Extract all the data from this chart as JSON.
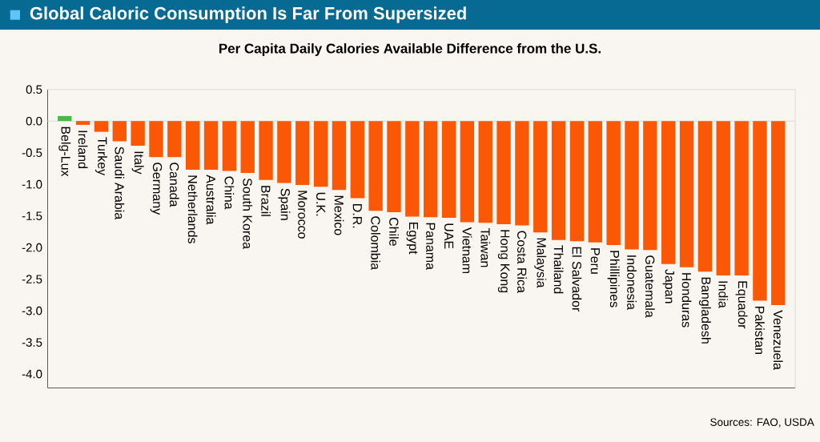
{
  "chart_data": {
    "type": "bar",
    "title": "Global Caloric Consumption Is Far From Supersized",
    "subtitle": "Per Capita Daily Calories Available Difference from the U.S.",
    "categories": [
      "Belg-Lux",
      "Ireland",
      "Turkey",
      "Saudi Arabia",
      "Italy",
      "Germany",
      "Canada",
      "Netherlands",
      "Australia",
      "China",
      "South Korea",
      "Brazil",
      "Spain",
      "Morocco",
      "U.K.",
      "Mexico",
      "D.R.",
      "Colombia",
      "Chile",
      "Egypt",
      "Panama",
      "UAE",
      "Vietnam",
      "Taiwan",
      "Hong Kong",
      "Costa Rica",
      "Malaysia",
      "Thailand",
      "El Salvador",
      "Peru",
      "Phillipines",
      "Indonesia",
      "Guatemala",
      "Japan",
      "Honduras",
      "Bangladesh",
      "India",
      "Equador",
      "Pakistan",
      "Venezuela"
    ],
    "values": [
      0.08,
      -0.06,
      -0.17,
      -0.32,
      -0.39,
      -0.57,
      -0.57,
      -0.77,
      -0.77,
      -0.79,
      -0.82,
      -0.93,
      -0.98,
      -1.01,
      -1.04,
      -1.09,
      -1.22,
      -1.42,
      -1.44,
      -1.51,
      -1.52,
      -1.53,
      -1.6,
      -1.61,
      -1.63,
      -1.65,
      -1.76,
      -1.88,
      -1.9,
      -1.92,
      -1.96,
      -2.03,
      -2.04,
      -2.26,
      -2.31,
      -2.38,
      -2.44,
      -2.44,
      -2.84,
      -2.91
    ],
    "colors": [
      "#4cb848",
      "#fa5805",
      "#fa5805",
      "#fa5805",
      "#fa5805",
      "#fa5805",
      "#fa5805",
      "#fa5805",
      "#fa5805",
      "#fa5805",
      "#fa5805",
      "#fa5805",
      "#fa5805",
      "#fa5805",
      "#fa5805",
      "#fa5805",
      "#fa5805",
      "#fa5805",
      "#fa5805",
      "#fa5805",
      "#fa5805",
      "#fa5805",
      "#fa5805",
      "#fa5805",
      "#fa5805",
      "#fa5805",
      "#fa5805",
      "#fa5805",
      "#fa5805",
      "#fa5805",
      "#fa5805",
      "#fa5805",
      "#fa5805",
      "#fa5805",
      "#fa5805",
      "#fa5805",
      "#fa5805",
      "#fa5805",
      "#fa5805",
      "#fa5805"
    ],
    "ylim": [
      -4.22,
      0.5
    ],
    "yticks": [
      0.5,
      {
        "value": 0,
        "label": "0.0"
      },
      -0.5,
      {
        "value": -1,
        "label": "-1.0"
      },
      -1.5,
      {
        "value": -2,
        "label": "-2.0"
      },
      -2.5,
      {
        "value": -3,
        "label": "-3.0"
      },
      -3.5,
      {
        "value": -4,
        "label": "-4.0"
      }
    ],
    "ref_lines": [
      {
        "axis": "y",
        "value": 0,
        "color": "#dcd8d4"
      }
    ],
    "annotations": [
      "Sources: FAO, USDA"
    ]
  }
}
